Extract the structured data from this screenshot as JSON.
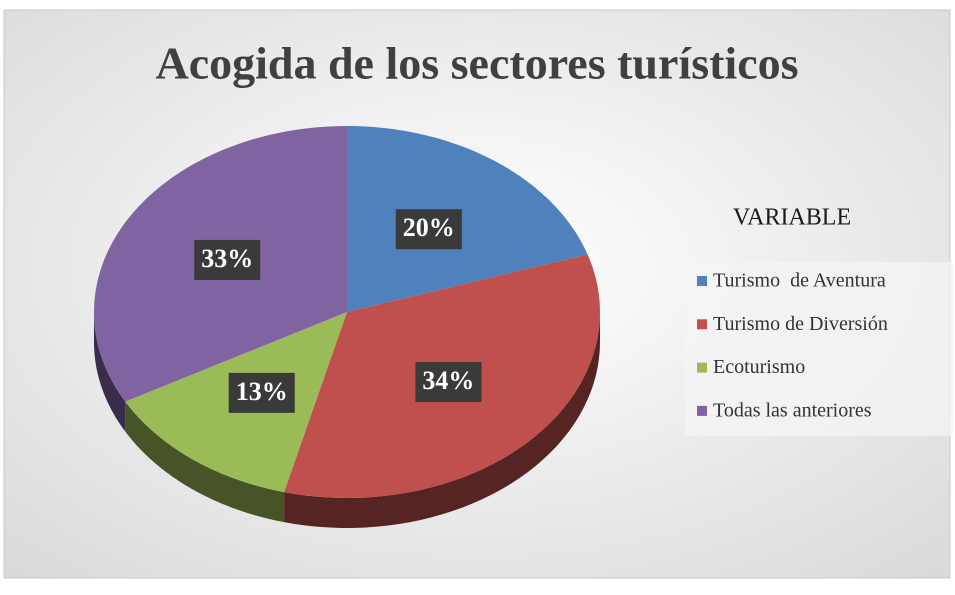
{
  "chart_data": {
    "type": "pie",
    "title": "Acogida de los sectores turísticos",
    "legend_title": "VARIABLE",
    "legend": "right",
    "categories": [
      "Turismo  de Aventura",
      "Turismo de Diversión",
      "Ecoturismo",
      "Todas las anteriores"
    ],
    "values": [
      20,
      34,
      13,
      33
    ],
    "value_labels": [
      "20%",
      "34%",
      "13%",
      "33%"
    ],
    "colors": [
      "#4f81bd",
      "#c0504d",
      "#9bbb59",
      "#8064a2"
    ]
  }
}
